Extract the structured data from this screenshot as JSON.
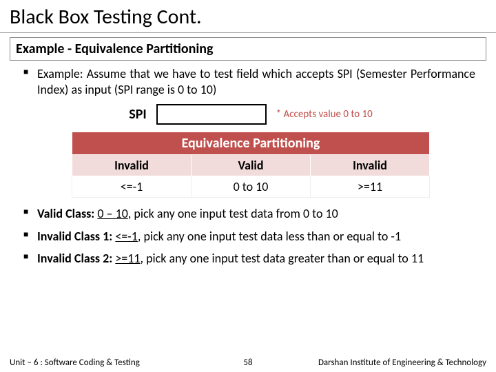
{
  "title": "Black Box Testing Cont.",
  "subtitle": "Example - Equivalence Partitioning",
  "bullet1": "Example: Assume that we have to test field which accepts SPI (Semester Performance Index) as input (SPI range is 0 to 10)",
  "spi": {
    "label": "SPI",
    "note": "* Accepts value 0 to 10"
  },
  "table": {
    "header": "Equivalence Partitioning",
    "cols": [
      "Invalid",
      "Valid",
      "Invalid"
    ],
    "row": [
      "<=-1",
      "0 to 10",
      ">=11"
    ],
    "header_bg": "#c0504d",
    "header_fg": "#ffffff",
    "sub_bg": "#f2dcdb",
    "sub_fg": "#000000"
  },
  "bullet2": {
    "label": "Valid Class:",
    "val": "0 – 10",
    "rest": ", pick any one input test data from 0 to 10"
  },
  "bullet3": {
    "label": "Invalid Class 1:",
    "val": "<=-1",
    "rest": ", pick any one input test data less than or equal to -1"
  },
  "bullet4": {
    "label": "Invalid Class 2:",
    "val": ">=11",
    "rest": ", pick any one input test data greater than or equal to 11"
  },
  "footer": {
    "left": "Unit – 6 : Software Coding & Testing",
    "page": "58",
    "right": "Darshan Institute of Engineering & Technology"
  }
}
